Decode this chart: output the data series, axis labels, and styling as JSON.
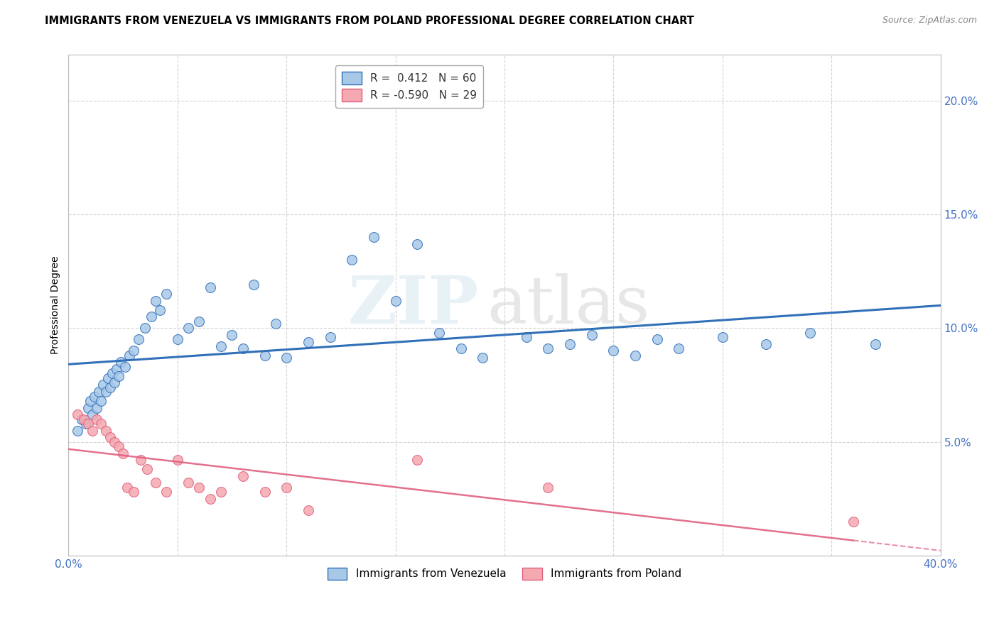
{
  "title": "IMMIGRANTS FROM VENEZUELA VS IMMIGRANTS FROM POLAND PROFESSIONAL DEGREE CORRELATION CHART",
  "source": "Source: ZipAtlas.com",
  "ylabel": "Professional Degree",
  "xlim": [
    0.0,
    0.4
  ],
  "ylim": [
    0.0,
    0.22
  ],
  "watermark_zip": "ZIP",
  "watermark_atlas": "atlas",
  "legend_blue_r": "R =  0.412",
  "legend_blue_n": "N = 60",
  "legend_pink_r": "R = -0.590",
  "legend_pink_n": "N = 29",
  "blue_color": "#a8c8e8",
  "pink_color": "#f4a8b0",
  "blue_line_color": "#3070b8",
  "pink_line_color": "#e06080",
  "background_color": "#ffffff",
  "grid_color": "#d0d0d0",
  "tick_label_color": "#4472c4",
  "venezuela_x": [
    0.004,
    0.006,
    0.008,
    0.009,
    0.01,
    0.011,
    0.012,
    0.013,
    0.014,
    0.015,
    0.016,
    0.017,
    0.018,
    0.019,
    0.02,
    0.021,
    0.022,
    0.023,
    0.024,
    0.026,
    0.028,
    0.03,
    0.032,
    0.035,
    0.038,
    0.04,
    0.042,
    0.045,
    0.05,
    0.055,
    0.06,
    0.065,
    0.07,
    0.075,
    0.08,
    0.085,
    0.09,
    0.095,
    0.1,
    0.11,
    0.12,
    0.13,
    0.14,
    0.15,
    0.16,
    0.17,
    0.18,
    0.19,
    0.21,
    0.22,
    0.23,
    0.24,
    0.25,
    0.26,
    0.27,
    0.28,
    0.3,
    0.32,
    0.34,
    0.37
  ],
  "venezuela_y": [
    0.055,
    0.06,
    0.058,
    0.065,
    0.068,
    0.062,
    0.07,
    0.065,
    0.072,
    0.068,
    0.075,
    0.072,
    0.078,
    0.074,
    0.08,
    0.076,
    0.082,
    0.079,
    0.085,
    0.083,
    0.088,
    0.09,
    0.095,
    0.1,
    0.105,
    0.112,
    0.108,
    0.115,
    0.095,
    0.1,
    0.103,
    0.118,
    0.092,
    0.097,
    0.091,
    0.119,
    0.088,
    0.102,
    0.087,
    0.094,
    0.096,
    0.13,
    0.14,
    0.112,
    0.137,
    0.098,
    0.091,
    0.087,
    0.096,
    0.091,
    0.093,
    0.097,
    0.09,
    0.088,
    0.095,
    0.091,
    0.096,
    0.093,
    0.098,
    0.093
  ],
  "poland_x": [
    0.004,
    0.007,
    0.009,
    0.011,
    0.013,
    0.015,
    0.017,
    0.019,
    0.021,
    0.023,
    0.025,
    0.027,
    0.03,
    0.033,
    0.036,
    0.04,
    0.045,
    0.05,
    0.055,
    0.06,
    0.065,
    0.07,
    0.08,
    0.09,
    0.1,
    0.11,
    0.16,
    0.22,
    0.36
  ],
  "poland_y": [
    0.062,
    0.06,
    0.058,
    0.055,
    0.06,
    0.058,
    0.055,
    0.052,
    0.05,
    0.048,
    0.045,
    0.03,
    0.028,
    0.042,
    0.038,
    0.032,
    0.028,
    0.042,
    0.032,
    0.03,
    0.025,
    0.028,
    0.035,
    0.028,
    0.03,
    0.02,
    0.042,
    0.03,
    0.015
  ]
}
